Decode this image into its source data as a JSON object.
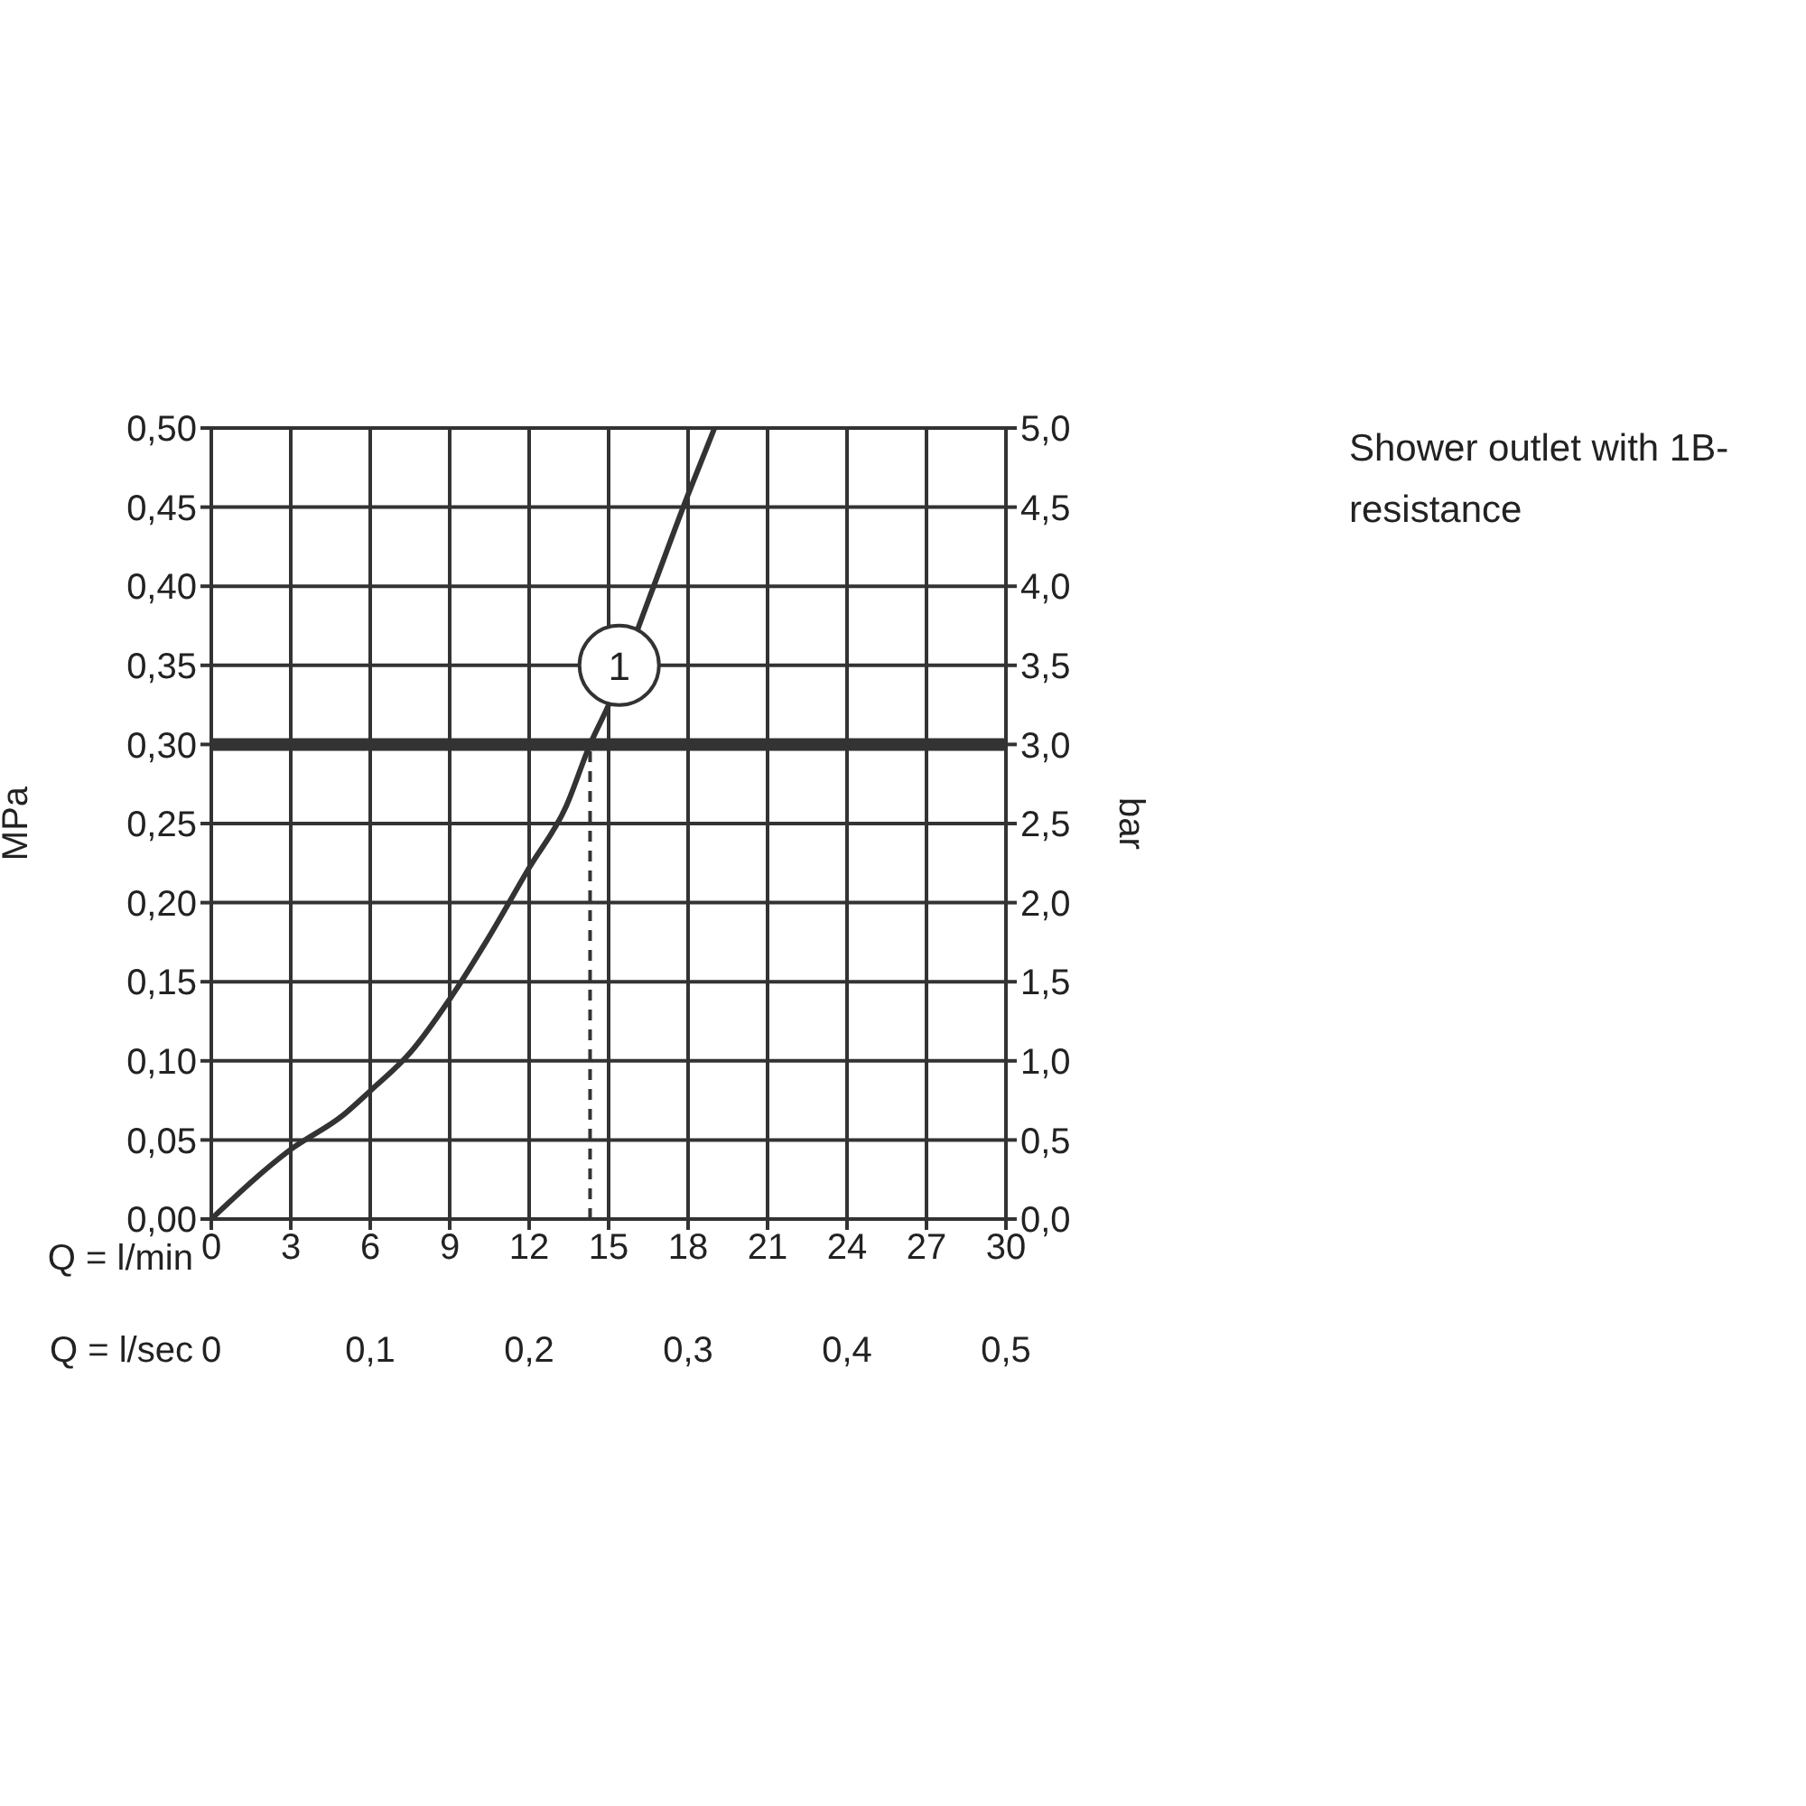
{
  "chart_data": {
    "type": "line",
    "title": "Shower outlet with 1B-resistance",
    "xlabel": "Q = l/min",
    "x2label": "Q = l/sec",
    "ylabel": "MPa",
    "y2label": "bar",
    "x": [
      0,
      3,
      5,
      6,
      7.5,
      9,
      10.4,
      12,
      13.4,
      14.3,
      15,
      16.5,
      18,
      19
    ],
    "series": [
      {
        "color": "#333333",
        "values": [
          0,
          0.044,
          0.066,
          0.081,
          0.105,
          0.139,
          0.176,
          0.222,
          0.261,
          0.3,
          0.325,
          0.391,
          0.458,
          0.5
        ]
      }
    ],
    "xlim": [
      0,
      30
    ],
    "xticks": [
      0,
      3,
      6,
      9,
      12,
      15,
      18,
      21,
      24,
      27,
      30
    ],
    "x2lim": [
      0,
      0.5
    ],
    "x2ticks": [
      0,
      {
        "value": 0.1,
        "label": "0,1"
      },
      {
        "value": 0.2,
        "label": "0,2"
      },
      {
        "value": 0.3,
        "label": "0,3"
      },
      {
        "value": 0.4,
        "label": "0,4"
      },
      {
        "value": 0.5,
        "label": "0,5"
      }
    ],
    "ylim": [
      0,
      0.5
    ],
    "yticks": [
      {
        "value": 0,
        "label": "0,00"
      },
      {
        "value": 0.05,
        "label": "0,05"
      },
      {
        "value": 0.1,
        "label": "0,10"
      },
      {
        "value": 0.15,
        "label": "0,15"
      },
      {
        "value": 0.2,
        "label": "0,20"
      },
      {
        "value": 0.25,
        "label": "0,25"
      },
      {
        "value": 0.3,
        "label": "0,30"
      },
      {
        "value": 0.35,
        "label": "0,35"
      },
      {
        "value": 0.4,
        "label": "0,40"
      },
      {
        "value": 0.45,
        "label": "0,45"
      },
      {
        "value": 0.5,
        "label": "0,50"
      }
    ],
    "y2lim": [
      0,
      5
    ],
    "y2ticks": [
      {
        "value": 0,
        "label": "0,0"
      },
      {
        "value": 0.5,
        "label": "0,5"
      },
      {
        "value": 1,
        "label": "1,0"
      },
      {
        "value": 1.5,
        "label": "1,5"
      },
      {
        "value": 2,
        "label": "2,0"
      },
      {
        "value": 2.5,
        "label": "2,5"
      },
      {
        "value": 3,
        "label": "3,0"
      },
      {
        "value": 3.5,
        "label": "3,5"
      },
      {
        "value": 4,
        "label": "4,0"
      },
      {
        "value": 4.5,
        "label": "4,5"
      },
      {
        "value": 5,
        "label": "5,0"
      }
    ],
    "grid": true,
    "ref_lines": [
      {
        "axis": "y",
        "value": 0.3,
        "color": "#333333"
      },
      {
        "axis": "x",
        "value": 14.3,
        "line_style": "dashed",
        "color": "#333333"
      }
    ],
    "annotations": [
      {
        "text": "1",
        "x": 15.4,
        "y": 0.35
      }
    ]
  }
}
